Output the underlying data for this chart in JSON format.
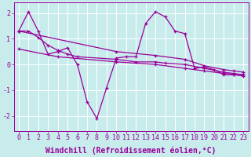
{
  "background_color": "#c8ecec",
  "line_color": "#990099",
  "grid_color": "#ffffff",
  "xlim": [
    -0.5,
    23.5
  ],
  "ylim": [
    -2.6,
    2.4
  ],
  "xticks": [
    0,
    1,
    2,
    3,
    4,
    5,
    6,
    7,
    8,
    9,
    10,
    11,
    12,
    13,
    14,
    15,
    16,
    17,
    18,
    19,
    20,
    21,
    22,
    23
  ],
  "yticks": [
    -2,
    -1,
    0,
    1,
    2
  ],
  "series": [
    {
      "x": [
        0,
        1,
        2,
        3,
        4,
        5,
        6,
        7,
        8,
        9,
        10,
        11,
        12,
        13,
        14,
        15,
        16,
        17,
        18,
        19,
        20,
        21,
        22,
        23
      ],
      "y": [
        1.3,
        2.05,
        1.3,
        0.4,
        0.5,
        0.65,
        0.0,
        -1.45,
        -2.1,
        -0.9,
        0.25,
        0.3,
        0.3,
        1.6,
        2.05,
        1.85,
        1.3,
        1.2,
        -0.15,
        -0.1,
        -0.2,
        -0.4,
        -0.4,
        -0.45
      ]
    },
    {
      "x": [
        0,
        10,
        14,
        17,
        19,
        21,
        22,
        23
      ],
      "y": [
        1.3,
        0.5,
        0.35,
        0.2,
        -0.05,
        -0.2,
        -0.25,
        -0.3
      ]
    },
    {
      "x": [
        0,
        4,
        10,
        14,
        17,
        19,
        21,
        22,
        23
      ],
      "y": [
        0.6,
        0.3,
        0.1,
        0.0,
        -0.15,
        -0.25,
        -0.35,
        -0.38,
        -0.4
      ]
    },
    {
      "x": [
        0,
        1,
        2,
        3,
        4,
        5,
        6,
        10,
        12,
        14,
        15,
        17,
        19,
        21,
        22,
        23
      ],
      "y": [
        1.3,
        1.3,
        1.05,
        0.75,
        0.55,
        0.4,
        0.3,
        0.2,
        0.1,
        0.1,
        0.05,
        0.0,
        -0.15,
        -0.3,
        -0.35,
        -0.4
      ]
    }
  ],
  "xlabel": "Windchill (Refroidissement éolien,°C)",
  "font_family": "monospace",
  "tick_fontsize": 6.0,
  "xlabel_fontsize": 7.0,
  "linewidth": 0.9,
  "markersize": 3.5
}
